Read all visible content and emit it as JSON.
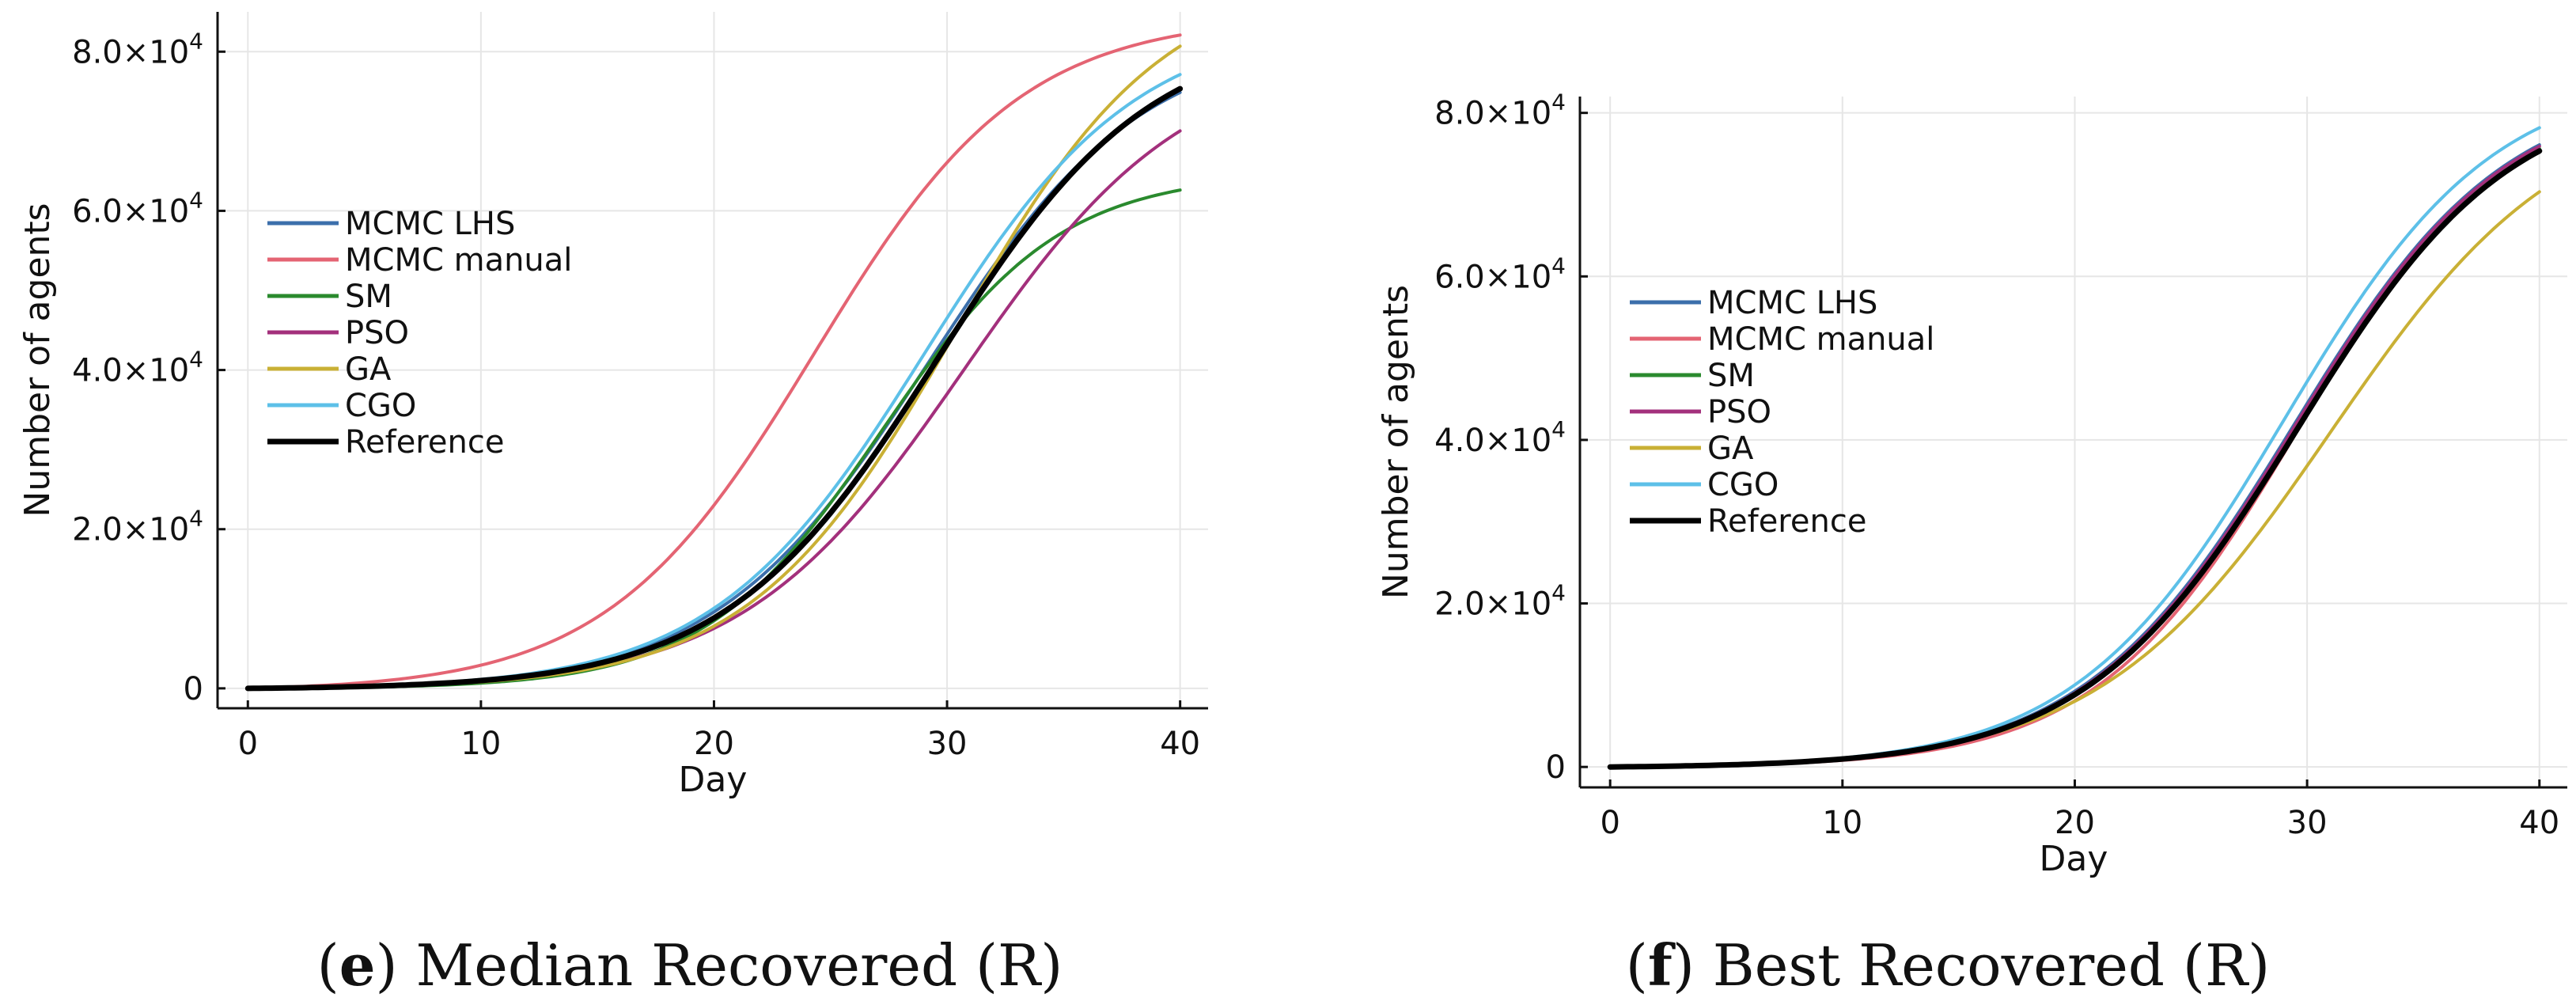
{
  "chart_data": [
    {
      "id": "median",
      "type": "line",
      "caption_letter": "e",
      "caption_text": "Median Recovered (R)",
      "xlabel": "Day",
      "ylabel": "Number of agents",
      "xlim": [
        -1.3,
        41.2
      ],
      "ylim": [
        -2500,
        85000
      ],
      "xticks": [
        0,
        10,
        20,
        30,
        40
      ],
      "xtick_labels": [
        "0",
        "10",
        "20",
        "30",
        "40"
      ],
      "yticks": [
        0,
        20000,
        40000,
        60000,
        80000
      ],
      "ytick_labels": [
        {
          "mant": "0",
          "exp": ""
        },
        {
          "mant": "2.0×10",
          "exp": "4"
        },
        {
          "mant": "4.0×10",
          "exp": "4"
        },
        {
          "mant": "6.0×10",
          "exp": "4"
        },
        {
          "mant": "8.0×10",
          "exp": "4"
        }
      ],
      "grid": true,
      "legend_position": "left-middle",
      "series": [
        {
          "name": "MCMC LHS",
          "color": "#3c6fab",
          "K": 82000,
          "r": 0.218,
          "t0": 29.2
        },
        {
          "name": "MCMC manual",
          "color": "#e46473",
          "K": 84500,
          "r": 0.225,
          "t0": 24.3
        },
        {
          "name": "SM",
          "color": "#2a8a2e",
          "K": 64800,
          "r": 0.262,
          "t0": 27.2
        },
        {
          "name": "PSO",
          "color": "#a3307c",
          "K": 80000,
          "r": 0.21,
          "t0": 30.7
        },
        {
          "name": "GA",
          "color": "#c9b035",
          "K": 90000,
          "r": 0.225,
          "t0": 30.4
        },
        {
          "name": "CGO",
          "color": "#5dc0e8",
          "K": 84000,
          "r": 0.22,
          "t0": 29.0
        },
        {
          "name": "Reference",
          "color": "#000000",
          "K": 83000,
          "r": 0.22,
          "t0": 29.6
        }
      ]
    },
    {
      "id": "best",
      "type": "line",
      "caption_letter": "f",
      "caption_text": "Best Recovered (R)",
      "xlabel": "Day",
      "ylabel": "Number of agents",
      "xlim": [
        -1.3,
        41.2
      ],
      "ylim": [
        -2500,
        82000
      ],
      "xticks": [
        0,
        10,
        20,
        30,
        40
      ],
      "xtick_labels": [
        "0",
        "10",
        "20",
        "30",
        "40"
      ],
      "yticks": [
        0,
        20000,
        40000,
        60000,
        80000
      ],
      "ytick_labels": [
        {
          "mant": "0",
          "exp": ""
        },
        {
          "mant": "2.0×10",
          "exp": "4"
        },
        {
          "mant": "4.0×10",
          "exp": "4"
        },
        {
          "mant": "6.0×10",
          "exp": "4"
        },
        {
          "mant": "8.0×10",
          "exp": "4"
        }
      ],
      "grid": true,
      "legend_position": "top-left",
      "series": [
        {
          "name": "MCMC LHS",
          "color": "#3c6fab",
          "K": 83500,
          "r": 0.22,
          "t0": 29.4
        },
        {
          "name": "MCMC manual",
          "color": "#e46473",
          "K": 82500,
          "r": 0.23,
          "t0": 29.6
        },
        {
          "name": "SM",
          "color": "#2a8a2e",
          "K": 83000,
          "r": 0.222,
          "t0": 29.5
        },
        {
          "name": "PSO",
          "color": "#a3307c",
          "K": 83300,
          "r": 0.221,
          "t0": 29.45
        },
        {
          "name": "GA",
          "color": "#c9b035",
          "K": 82000,
          "r": 0.2,
          "t0": 31.0
        },
        {
          "name": "CGO",
          "color": "#5dc0e8",
          "K": 85000,
          "r": 0.222,
          "t0": 29.0
        },
        {
          "name": "Reference",
          "color": "#000000",
          "K": 83000,
          "r": 0.22,
          "t0": 29.6
        }
      ]
    }
  ]
}
